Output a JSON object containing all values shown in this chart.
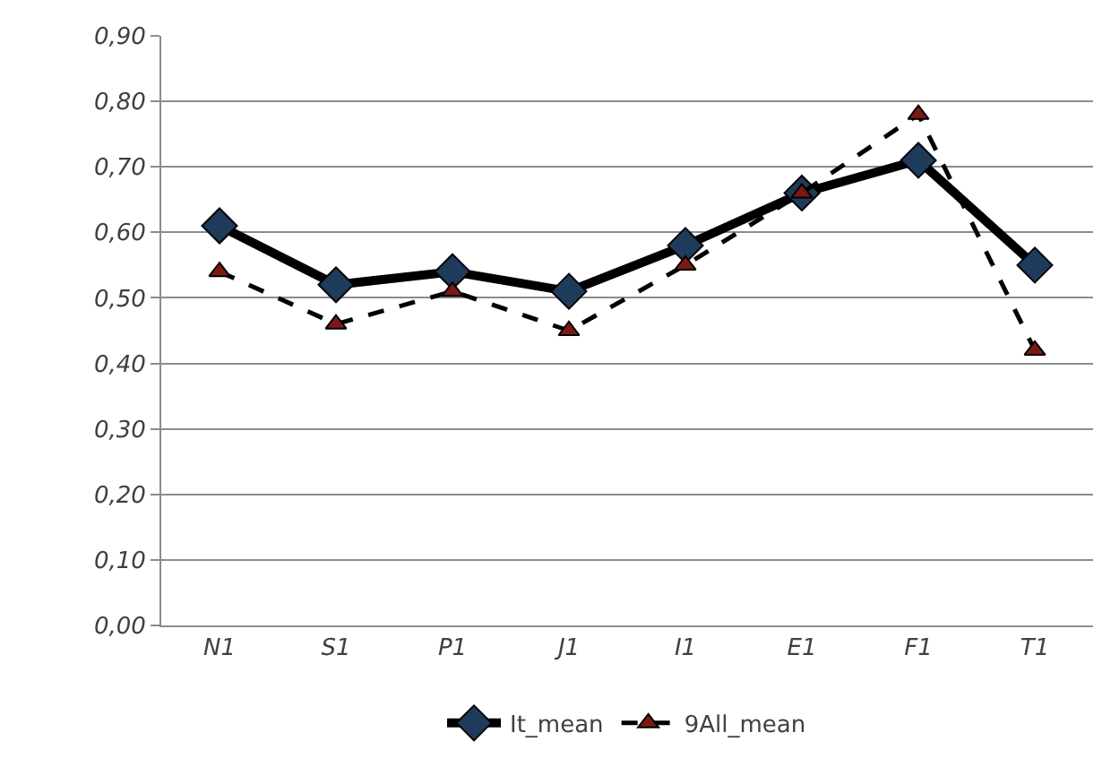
{
  "chart_data": {
    "type": "line",
    "categories": [
      "N1",
      "S1",
      "P1",
      "J1",
      "I1",
      "E1",
      "F1",
      "T1"
    ],
    "series": [
      {
        "name": "It_mean",
        "color": "#000000",
        "marker": "diamond",
        "line_style": "solid",
        "values": [
          0.61,
          0.52,
          0.54,
          0.51,
          0.58,
          0.66,
          0.71,
          0.55
        ]
      },
      {
        "name": "9All_mean",
        "color": "#000000",
        "marker": "triangle",
        "line_style": "dashed",
        "values": [
          0.54,
          0.46,
          0.51,
          0.45,
          0.55,
          0.66,
          0.78,
          0.42
        ]
      }
    ],
    "ylim": [
      0,
      0.9
    ],
    "yticks": [
      {
        "value": 0,
        "label": "0,00"
      },
      {
        "value": 0.1,
        "label": "0,10"
      },
      {
        "value": 0.2,
        "label": "0,20"
      },
      {
        "value": 0.3,
        "label": "0,30"
      },
      {
        "value": 0.4,
        "label": "0,40"
      },
      {
        "value": 0.5,
        "label": "0,50"
      },
      {
        "value": 0.6,
        "label": "0,60"
      },
      {
        "value": 0.7,
        "label": "0,70"
      },
      {
        "value": 0.8,
        "label": "0,80"
      },
      {
        "value": 0.9,
        "label": "0,90"
      }
    ],
    "grid": "y",
    "legend": "bottom"
  }
}
